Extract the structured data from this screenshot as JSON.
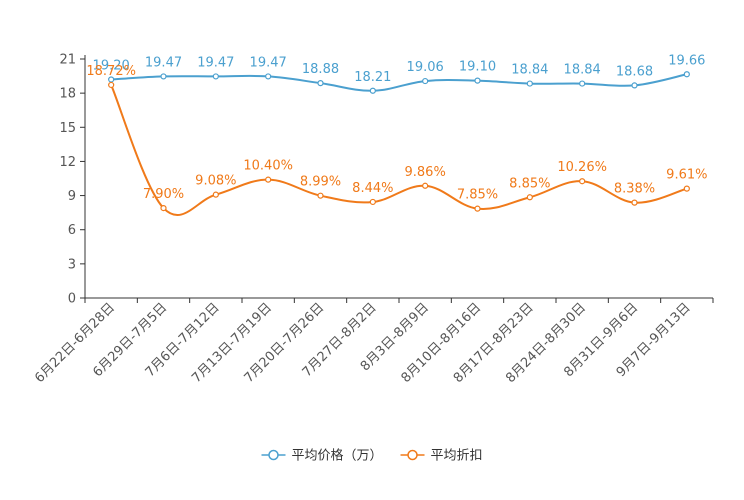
{
  "chart_data": {
    "type": "line",
    "categories": [
      "6月22日-6月28日",
      "6月29日-7月5日",
      "7月6日-7月12日",
      "7月13日-7月19日",
      "7月20日-7月26日",
      "7月27日-8月2日",
      "8月3日-8月9日",
      "8月10日-8月16日",
      "8月17日-8月23日",
      "8月24日-8月30日",
      "8月31日-9月6日",
      "9月7日-9月13日"
    ],
    "ylim": [
      0,
      21
    ],
    "yticks": [
      0,
      3,
      6,
      9,
      12,
      15,
      18,
      21
    ],
    "series": [
      {
        "name": "平均价格（万）",
        "color": "#4ba0cf",
        "values": [
          19.2,
          19.47,
          19.47,
          19.47,
          18.88,
          18.21,
          19.06,
          19.1,
          18.84,
          18.84,
          18.68,
          19.66
        ],
        "labels": [
          "19.20",
          "19.47",
          "19.47",
          "19.47",
          "18.88",
          "18.21",
          "19.06",
          "19.10",
          "18.84",
          "18.84",
          "18.68",
          "19.66"
        ]
      },
      {
        "name": "平均折扣",
        "color": "#f07a1a",
        "values": [
          18.72,
          7.9,
          9.08,
          10.4,
          8.99,
          8.44,
          9.86,
          7.85,
          8.85,
          10.26,
          8.38,
          9.61
        ],
        "labels": [
          "18.72%",
          "7.90%",
          "9.08%",
          "10.40%",
          "8.99%",
          "8.44%",
          "9.86%",
          "7.85%",
          "8.85%",
          "10.26%",
          "8.38%",
          "9.61%"
        ]
      }
    ],
    "legend_position": "bottom-center",
    "axis_color": "#333333",
    "label_color": "#555555"
  }
}
